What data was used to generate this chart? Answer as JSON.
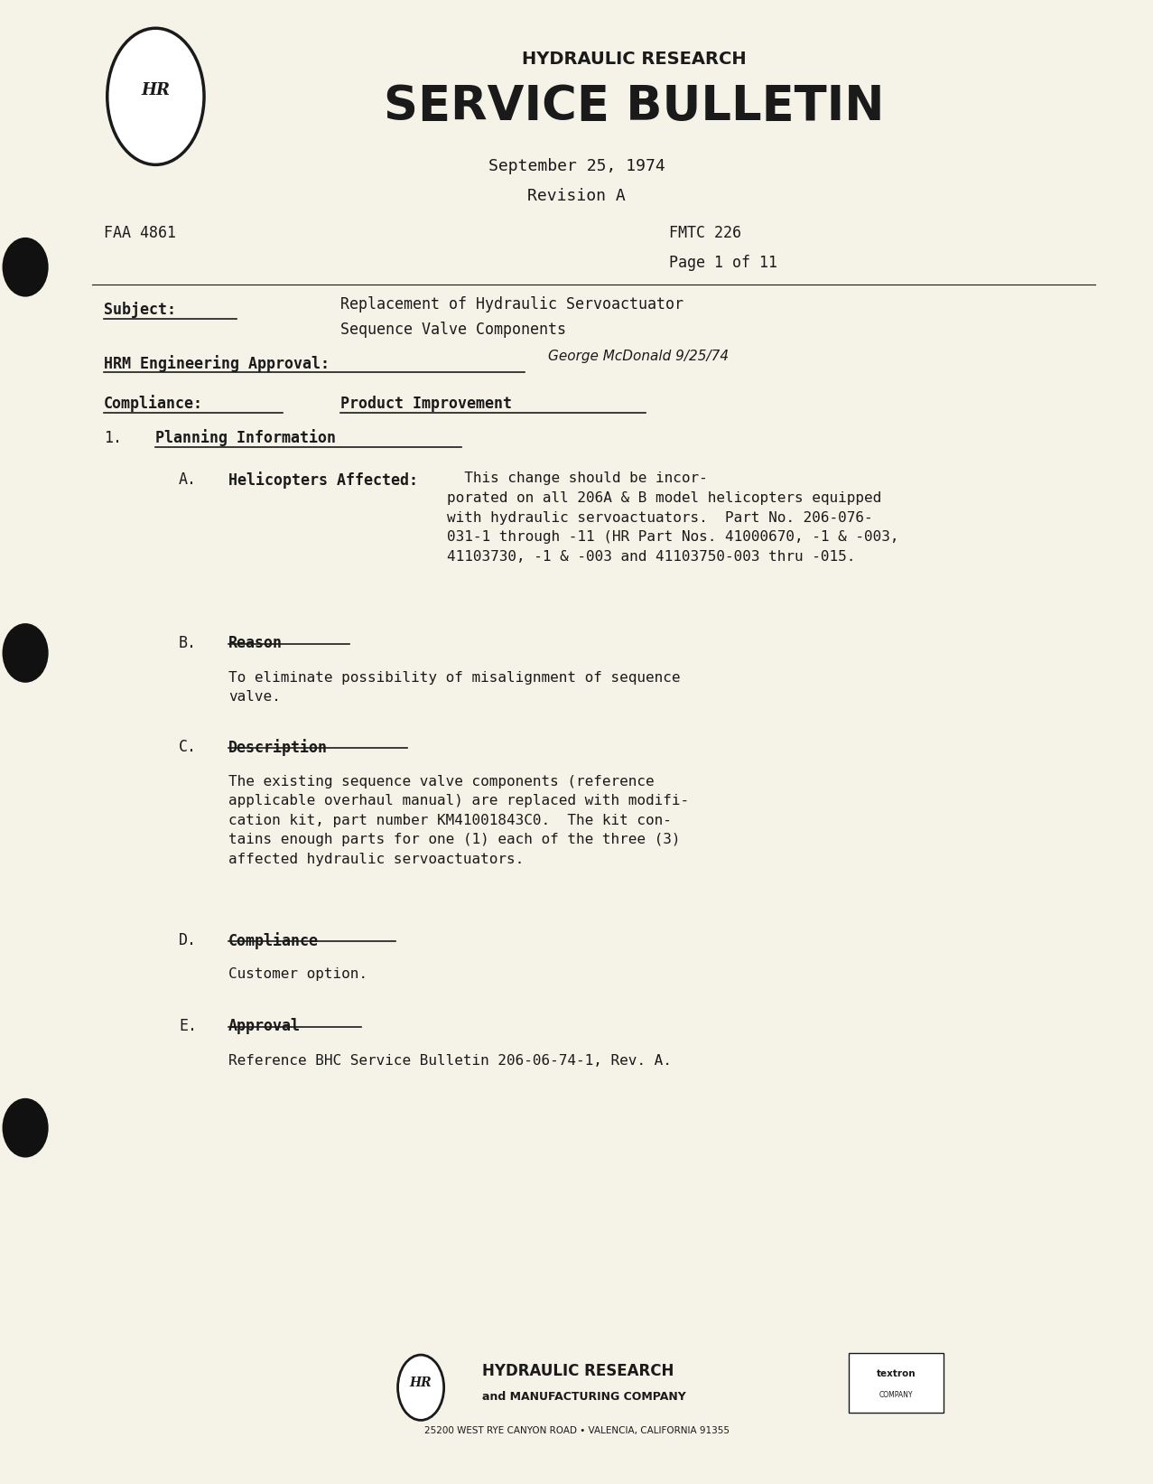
{
  "bg_color": "#f5f2e8",
  "text_color": "#1a1a1a",
  "page_width": 12.77,
  "page_height": 16.43,
  "header_title_small": "HYDRAULIC RESEARCH",
  "header_title_large": "SERVICE BULLETIN",
  "date_line": "September 25, 1974",
  "revision_line": "Revision A",
  "faa_label": "FAA 4861",
  "fmtc_label": "FMTC 226",
  "page_label": "Page 1 of 11",
  "subject_label": "Subject:",
  "subject_text_line1": "Replacement of Hydraulic Servoactuator",
  "subject_text_line2": "Sequence Valve Components",
  "hrm_label": "HRM Engineering Approval:",
  "hrm_signature": "George McDonald 9/25/74",
  "compliance_label": "Compliance:",
  "compliance_text": "Product Improvement",
  "section1_label": "1.",
  "section1_title": "Planning Information",
  "sectionA_label": "A.",
  "sectionA_title": "Helicopters Affected:",
  "sectionA_body": "  This change should be incor-\nporated on all 206A & B model helicopters equipped\nwith hydraulic servoactuators.  Part No. 206-076-\n031-1 through -11 (HR Part Nos. 41000670, -1 & -003,\n41103730, -1 & -003 and 41103750-003 thru -015.",
  "sectionB_label": "B.",
  "sectionB_title": "Reason",
  "sectionB_body": "To eliminate possibility of misalignment of sequence\nvalve.",
  "sectionC_label": "C.",
  "sectionC_title": "Description",
  "sectionC_body": "The existing sequence valve components (reference\napplicable overhaul manual) are replaced with modifi-\ncation kit, part number KM41001843C0.  The kit con-\ntains enough parts for one (1) each of the three (3)\naffected hydraulic servoactuators.",
  "sectionD_label": "D.",
  "sectionD_title": "Compliance",
  "sectionD_body": "Customer option.",
  "sectionE_label": "E.",
  "sectionE_title": "Approval",
  "sectionE_body": "Reference BHC Service Bulletin 206-06-74-1, Rev. A.",
  "footer_company": "HYDRAULIC RESEARCH",
  "footer_sub": "and MANUFACTURING COMPANY",
  "footer_address": "25200 WEST RYE CANYON ROAD • VALENCIA, CALIFORNIA 91355",
  "footer_textron_line1": "textron",
  "footer_textron_line2": "COMPANY",
  "logo_hr_text": "HR",
  "footer_logo_hr": "HR"
}
